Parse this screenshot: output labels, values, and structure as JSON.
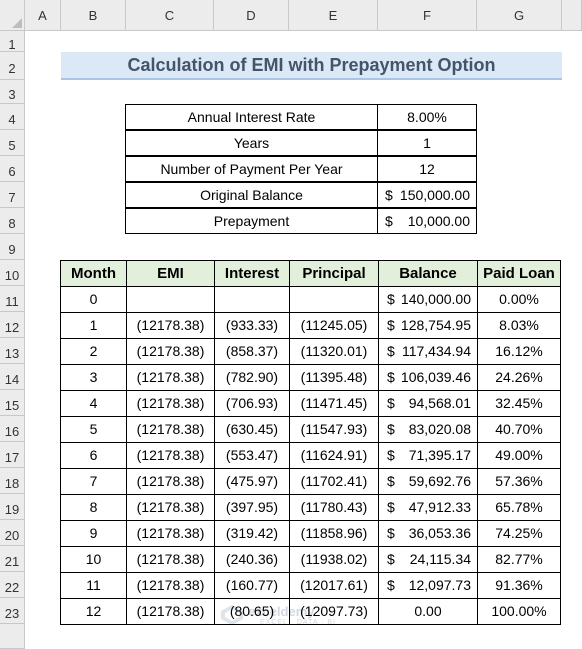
{
  "columns": [
    "A",
    "B",
    "C",
    "D",
    "E",
    "F",
    "G"
  ],
  "rows": [
    "1",
    "2",
    "3",
    "4",
    "5",
    "6",
    "7",
    "8",
    "9",
    "10",
    "11",
    "12",
    "13",
    "14",
    "15",
    "16",
    "17",
    "18",
    "19",
    "20",
    "21",
    "22",
    "23"
  ],
  "title": "Calculation of EMI with Prepayment Option",
  "inputs": [
    {
      "label": "Annual Interest Rate",
      "value": "8.00%",
      "currency": ""
    },
    {
      "label": "Years",
      "value": "1",
      "currency": ""
    },
    {
      "label": "Number of Payment Per Year",
      "value": "12",
      "currency": ""
    },
    {
      "label": "Original Balance",
      "value": "150,000.00",
      "currency": "$"
    },
    {
      "label": "Prepayment",
      "value": "10,000.00",
      "currency": "$"
    }
  ],
  "table": {
    "headers": [
      "Month",
      "EMI",
      "Interest",
      "Principal",
      "Balance",
      "Paid Loan"
    ],
    "rows": [
      {
        "month": "0",
        "emi": "",
        "interest": "",
        "principal": "",
        "cur": "$",
        "balance": "140,000.00",
        "paid": "0.00%"
      },
      {
        "month": "1",
        "emi": "(12178.38)",
        "interest": "(933.33)",
        "principal": "(11245.05)",
        "cur": "$",
        "balance": "128,754.95",
        "paid": "8.03%"
      },
      {
        "month": "2",
        "emi": "(12178.38)",
        "interest": "(858.37)",
        "principal": "(11320.01)",
        "cur": "$",
        "balance": "117,434.94",
        "paid": "16.12%"
      },
      {
        "month": "3",
        "emi": "(12178.38)",
        "interest": "(782.90)",
        "principal": "(11395.48)",
        "cur": "$",
        "balance": "106,039.46",
        "paid": "24.26%"
      },
      {
        "month": "4",
        "emi": "(12178.38)",
        "interest": "(706.93)",
        "principal": "(11471.45)",
        "cur": "$",
        "balance": "94,568.01",
        "paid": "32.45%"
      },
      {
        "month": "5",
        "emi": "(12178.38)",
        "interest": "(630.45)",
        "principal": "(11547.93)",
        "cur": "$",
        "balance": "83,020.08",
        "paid": "40.70%"
      },
      {
        "month": "6",
        "emi": "(12178.38)",
        "interest": "(553.47)",
        "principal": "(11624.91)",
        "cur": "$",
        "balance": "71,395.17",
        "paid": "49.00%"
      },
      {
        "month": "7",
        "emi": "(12178.38)",
        "interest": "(475.97)",
        "principal": "(11702.41)",
        "cur": "$",
        "balance": "59,692.76",
        "paid": "57.36%"
      },
      {
        "month": "8",
        "emi": "(12178.38)",
        "interest": "(397.95)",
        "principal": "(11780.43)",
        "cur": "$",
        "balance": "47,912.33",
        "paid": "65.78%"
      },
      {
        "month": "9",
        "emi": "(12178.38)",
        "interest": "(319.42)",
        "principal": "(11858.96)",
        "cur": "$",
        "balance": "36,053.36",
        "paid": "74.25%"
      },
      {
        "month": "10",
        "emi": "(12178.38)",
        "interest": "(240.36)",
        "principal": "(11938.02)",
        "cur": "$",
        "balance": "24,115.34",
        "paid": "82.77%"
      },
      {
        "month": "11",
        "emi": "(12178.38)",
        "interest": "(160.77)",
        "principal": "(12017.61)",
        "cur": "$",
        "balance": "12,097.73",
        "paid": "91.36%"
      },
      {
        "month": "12",
        "emi": "(12178.38)",
        "interest": "(80.65)",
        "principal": "(12097.73)",
        "cur": "",
        "balance": "0.00",
        "paid": "100.00%"
      }
    ]
  },
  "watermark": {
    "name": "exceldemy",
    "sub": "EXCEL · DATA · BI"
  }
}
